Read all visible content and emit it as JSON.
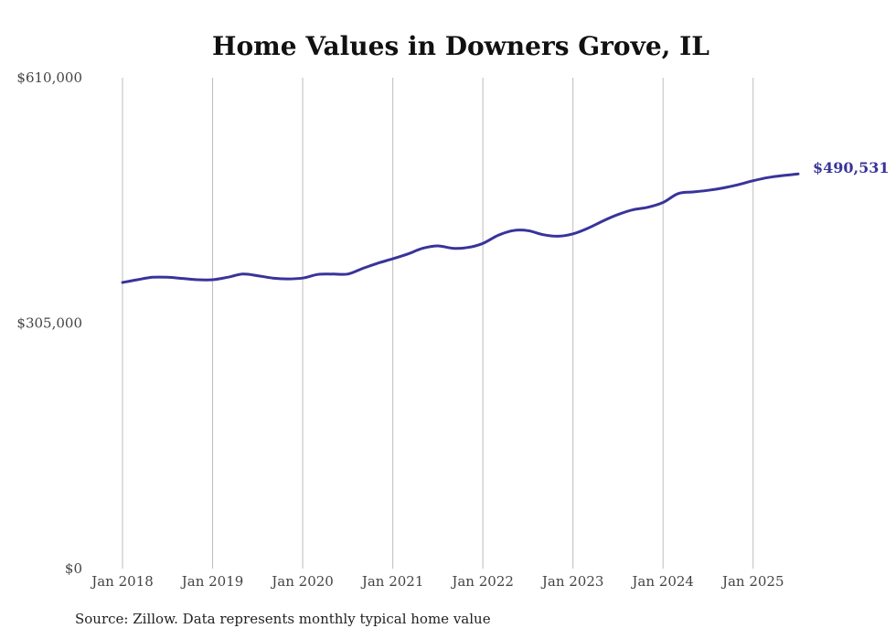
{
  "chart_data": {
    "type": "line",
    "title": "Home Values in Downers Grove, IL",
    "xlabel": "",
    "ylabel": "",
    "ylim": [
      0,
      610000
    ],
    "y_ticks": [
      {
        "value": 0,
        "label": "$0"
      },
      {
        "value": 305000,
        "label": "$305,000"
      },
      {
        "value": 610000,
        "label": "$610,000"
      }
    ],
    "x_ticks": [
      {
        "value": 2018.0,
        "label": "Jan 2018"
      },
      {
        "value": 2019.0,
        "label": "Jan 2019"
      },
      {
        "value": 2020.0,
        "label": "Jan 2020"
      },
      {
        "value": 2021.0,
        "label": "Jan 2021"
      },
      {
        "value": 2022.0,
        "label": "Jan 2022"
      },
      {
        "value": 2023.0,
        "label": "Jan 2023"
      },
      {
        "value": 2024.0,
        "label": "Jan 2024"
      },
      {
        "value": 2025.0,
        "label": "Jan 2025"
      }
    ],
    "xlim": [
      2018.0,
      2025.5
    ],
    "grid": "vertical",
    "line_color": "#38349a",
    "series": [
      {
        "name": "Typical home value",
        "x": [
          2018.0,
          2018.167,
          2018.333,
          2018.5,
          2018.667,
          2018.833,
          2019.0,
          2019.167,
          2019.333,
          2019.5,
          2019.667,
          2019.833,
          2020.0,
          2020.167,
          2020.333,
          2020.5,
          2020.667,
          2020.833,
          2021.0,
          2021.167,
          2021.333,
          2021.5,
          2021.667,
          2021.833,
          2022.0,
          2022.167,
          2022.333,
          2022.5,
          2022.667,
          2022.833,
          2023.0,
          2023.167,
          2023.333,
          2023.5,
          2023.667,
          2023.833,
          2024.0,
          2024.167,
          2024.333,
          2024.5,
          2024.667,
          2024.833,
          2025.0,
          2025.167,
          2025.333,
          2025.5
        ],
        "values": [
          355500,
          359000,
          362000,
          362000,
          360500,
          359000,
          359000,
          362000,
          366000,
          364000,
          361000,
          360000,
          361000,
          365500,
          366000,
          366000,
          373000,
          379500,
          385000,
          391000,
          398000,
          401000,
          398000,
          399000,
          404000,
          414000,
          420000,
          420000,
          415000,
          413000,
          416000,
          423000,
          432000,
          440000,
          446000,
          449000,
          455000,
          466000,
          468000,
          470000,
          473000,
          477000,
          482000,
          486000,
          488500,
          490531
        ]
      }
    ],
    "end_label": "$490,531",
    "source": "Source: Zillow. Data represents monthly typical home value"
  }
}
